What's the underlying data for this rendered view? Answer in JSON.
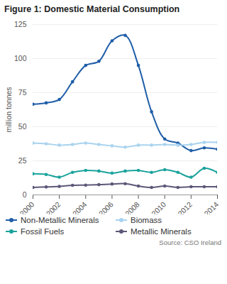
{
  "chart_data": {
    "type": "line",
    "title": "Figure 1: Domestic Material Consumption",
    "y_label": "million tonnes",
    "caption": "Source: CSO Ireland",
    "x": [
      2000,
      2001,
      2002,
      2003,
      2004,
      2005,
      2006,
      2007,
      2008,
      2009,
      2010,
      2011,
      2012,
      2013,
      2014
    ],
    "xlim": [
      2000,
      2014
    ],
    "xticks": [
      2000,
      2002,
      2004,
      2006,
      2008,
      2010,
      2012,
      2014
    ],
    "ylim": [
      0,
      125
    ],
    "yticks": [
      0,
      25,
      50,
      75,
      100,
      125
    ],
    "grid": true,
    "legend": "bottom",
    "series": [
      {
        "name": "Non-Metallic Minerals",
        "color": "#1f5ea8",
        "marker": "circle",
        "values": [
          66.5,
          67.5,
          70,
          83,
          95,
          98,
          113,
          117,
          95,
          61,
          41,
          38,
          32.5,
          34.5,
          33.5
        ]
      },
      {
        "name": "Biomass",
        "color": "#a9d3ef",
        "marker": "circle",
        "values": [
          38,
          37.5,
          36.5,
          37,
          38,
          37,
          36,
          35,
          36.5,
          36.5,
          37,
          36.5,
          37,
          38.5,
          38.5
        ]
      },
      {
        "name": "Fossil Fuels",
        "color": "#1ba39c",
        "marker": "circle",
        "values": [
          15.5,
          15,
          13,
          16.5,
          18,
          17.5,
          16,
          17.5,
          18,
          16.5,
          18.5,
          16.5,
          13,
          19.5,
          16.5
        ]
      },
      {
        "name": "Metallic Minerals",
        "color": "#5b5878",
        "marker": "circle",
        "values": [
          5.5,
          5.8,
          6.2,
          7,
          7.2,
          7.5,
          8,
          8.2,
          6.5,
          5.5,
          6.5,
          5.5,
          6,
          6,
          6
        ]
      }
    ]
  }
}
